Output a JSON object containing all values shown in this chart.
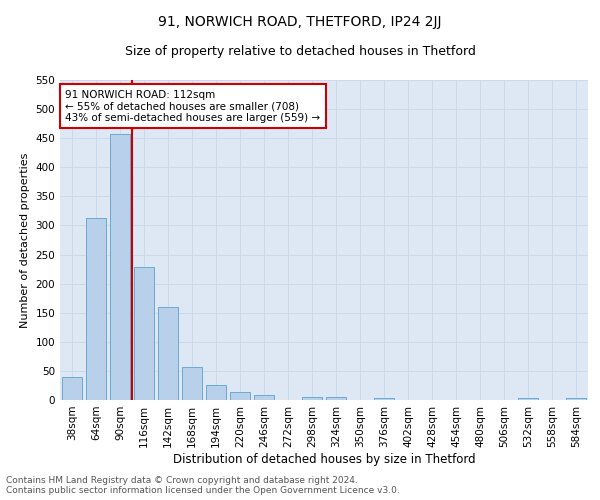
{
  "title": "91, NORWICH ROAD, THETFORD, IP24 2JJ",
  "subtitle": "Size of property relative to detached houses in Thetford",
  "xlabel": "Distribution of detached houses by size in Thetford",
  "ylabel": "Number of detached properties",
  "bar_values": [
    39,
    312,
    457,
    228,
    159,
    57,
    26,
    13,
    9,
    0,
    5,
    5,
    0,
    3,
    0,
    0,
    0,
    0,
    0,
    4,
    0,
    3
  ],
  "bar_labels": [
    "38sqm",
    "64sqm",
    "90sqm",
    "116sqm",
    "142sqm",
    "168sqm",
    "194sqm",
    "220sqm",
    "246sqm",
    "272sqm",
    "298sqm",
    "324sqm",
    "350sqm",
    "376sqm",
    "402sqm",
    "428sqm",
    "454sqm",
    "480sqm",
    "506sqm",
    "532sqm",
    "558sqm",
    "584sqm"
  ],
  "bar_color": "#b8d0ea",
  "bar_edge_color": "#6aaad4",
  "vline_x_index": 2.5,
  "vline_color": "#cc0000",
  "annotation_text": "91 NORWICH ROAD: 112sqm\n← 55% of detached houses are smaller (708)\n43% of semi-detached houses are larger (559) →",
  "annotation_box_edge": "#cc0000",
  "ylim": [
    0,
    550
  ],
  "yticks": [
    0,
    50,
    100,
    150,
    200,
    250,
    300,
    350,
    400,
    450,
    500,
    550
  ],
  "grid_color": "#c8d8e8",
  "bg_color": "#dde8f4",
  "footer_text": "Contains HM Land Registry data © Crown copyright and database right 2024.\nContains public sector information licensed under the Open Government Licence v3.0.",
  "title_fontsize": 10,
  "subtitle_fontsize": 9,
  "xlabel_fontsize": 8.5,
  "ylabel_fontsize": 8,
  "tick_fontsize": 7.5,
  "footer_fontsize": 6.5,
  "ann_fontsize": 7.5
}
